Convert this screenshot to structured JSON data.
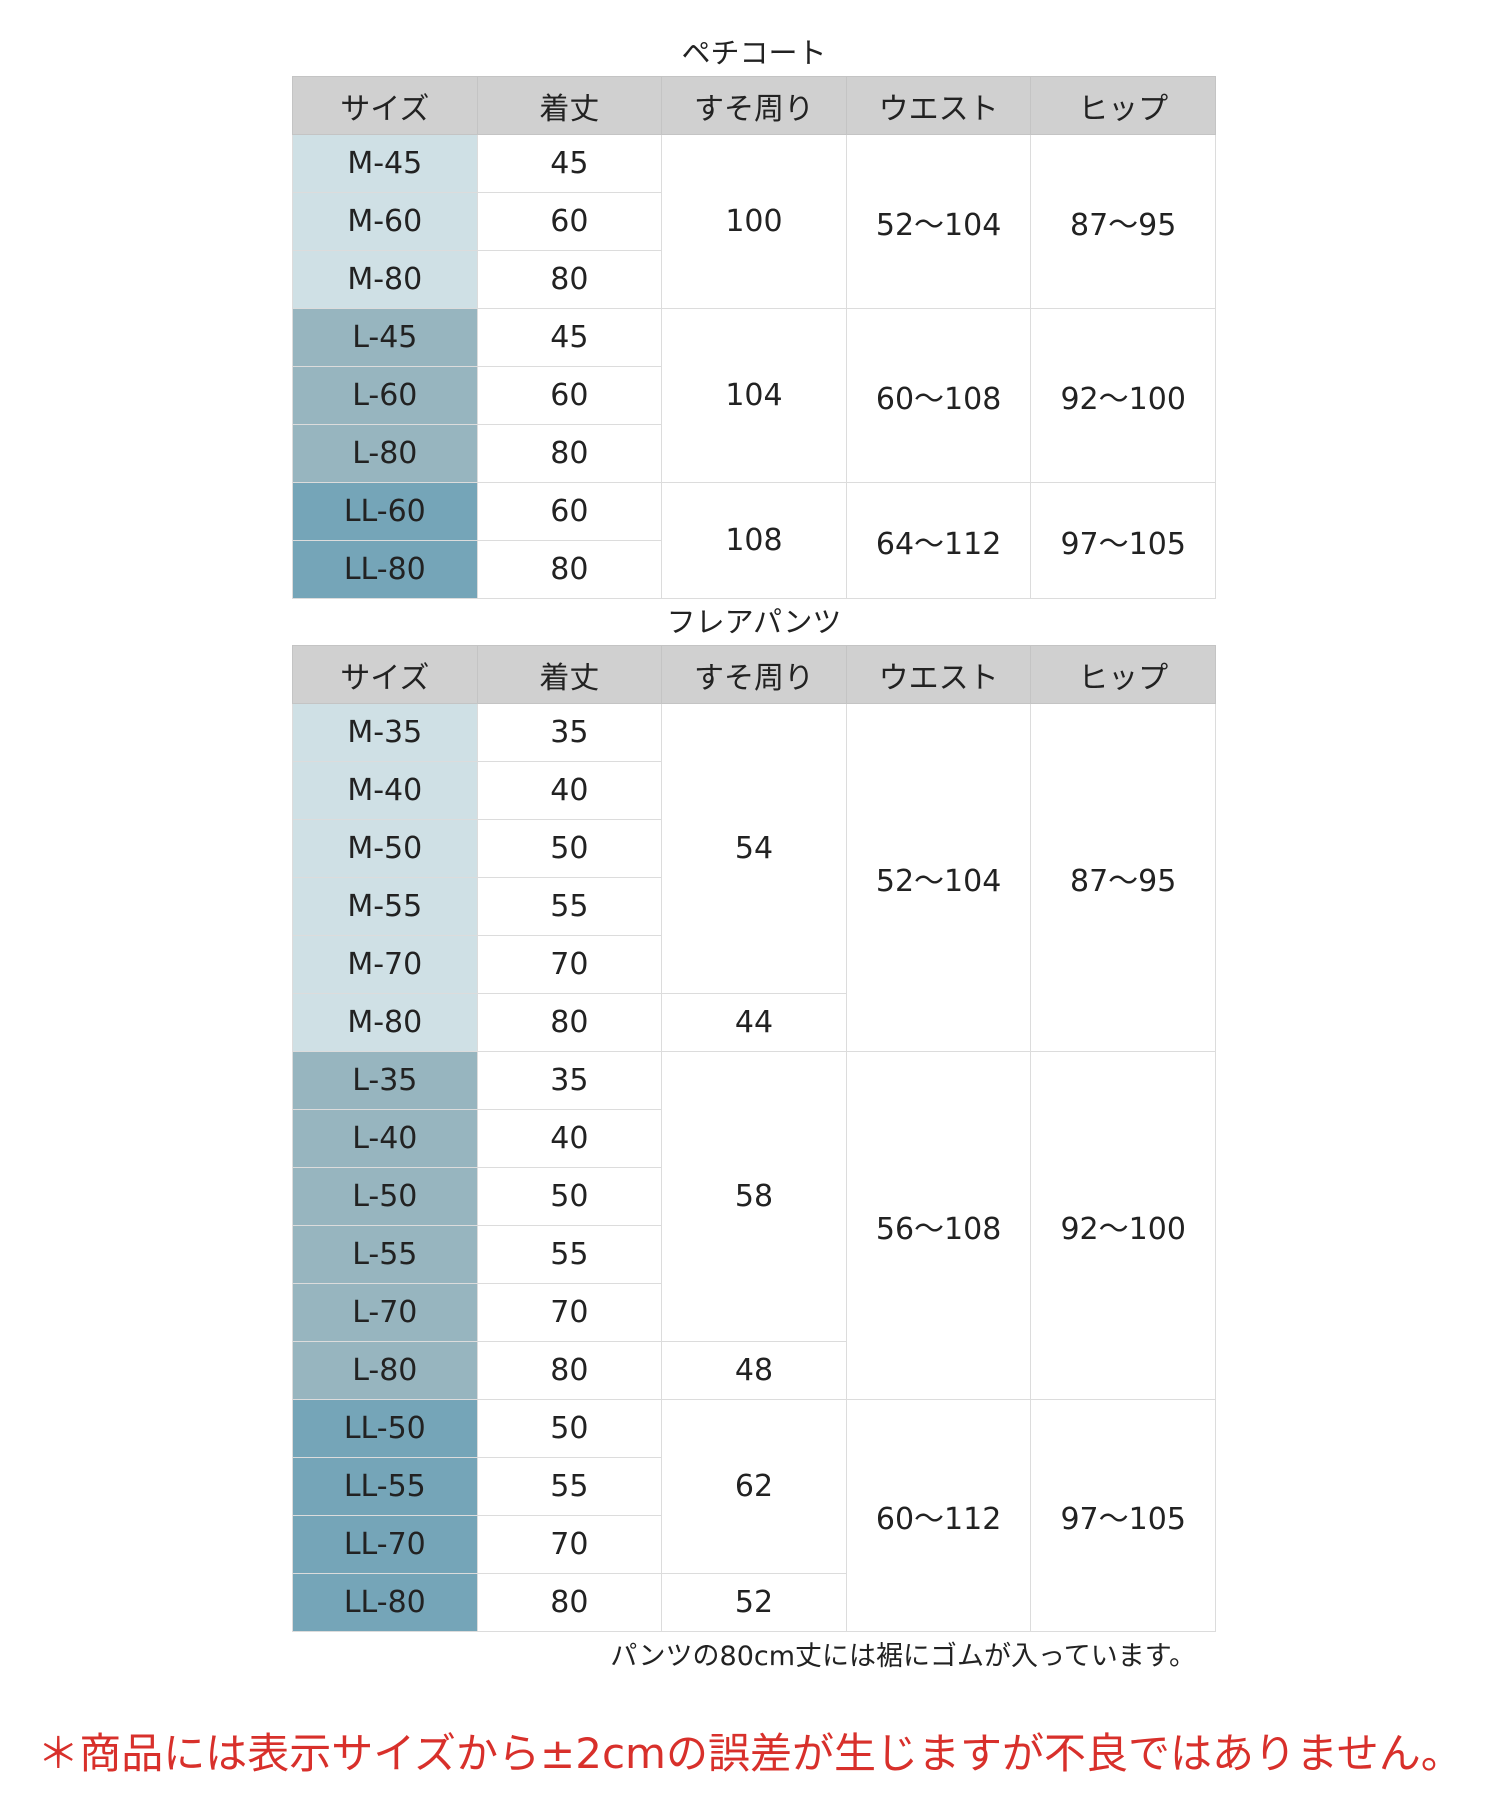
{
  "tables": [
    {
      "title": "ペチコート",
      "header": [
        "サイズ",
        "着丈",
        "すそ周り",
        "ウエスト",
        "ヒップ"
      ],
      "groups": [
        {
          "color": "#cfe0e5",
          "waist": "52〜104",
          "hip": "87〜95",
          "blocks": [
            {
              "hem": 100,
              "rows": [
                {
                  "size": "M-45",
                  "length": 45
                },
                {
                  "size": "M-60",
                  "length": 60
                },
                {
                  "size": "M-80",
                  "length": 80
                }
              ]
            }
          ]
        },
        {
          "color": "#97b5bf",
          "waist": "60〜108",
          "hip": "92〜100",
          "blocks": [
            {
              "hem": 104,
              "rows": [
                {
                  "size": "L-45",
                  "length": 45
                },
                {
                  "size": "L-60",
                  "length": 60
                },
                {
                  "size": "L-80",
                  "length": 80
                }
              ]
            }
          ]
        },
        {
          "color": "#75a5b8",
          "waist": "64〜112",
          "hip": "97〜105",
          "blocks": [
            {
              "hem": 108,
              "rows": [
                {
                  "size": "LL-60",
                  "length": 60
                },
                {
                  "size": "LL-80",
                  "length": 80
                }
              ]
            }
          ]
        }
      ]
    },
    {
      "title": "フレアパンツ",
      "header": [
        "サイズ",
        "着丈",
        "すそ周り",
        "ウエスト",
        "ヒップ"
      ],
      "groups": [
        {
          "color": "#cfe0e5",
          "waist": "52〜104",
          "hip": "87〜95",
          "blocks": [
            {
              "hem": 54,
              "rows": [
                {
                  "size": "M-35",
                  "length": 35
                },
                {
                  "size": "M-40",
                  "length": 40
                },
                {
                  "size": "M-50",
                  "length": 50
                },
                {
                  "size": "M-55",
                  "length": 55
                },
                {
                  "size": "M-70",
                  "length": 70
                }
              ]
            },
            {
              "hem": 44,
              "rows": [
                {
                  "size": "M-80",
                  "length": 80
                }
              ]
            }
          ]
        },
        {
          "color": "#97b5bf",
          "waist": "56〜108",
          "hip": "92〜100",
          "blocks": [
            {
              "hem": 58,
              "rows": [
                {
                  "size": "L-35",
                  "length": 35
                },
                {
                  "size": "L-40",
                  "length": 40
                },
                {
                  "size": "L-50",
                  "length": 50
                },
                {
                  "size": "L-55",
                  "length": 55
                },
                {
                  "size": "L-70",
                  "length": 70
                }
              ]
            },
            {
              "hem": 48,
              "rows": [
                {
                  "size": "L-80",
                  "length": 80
                }
              ]
            }
          ]
        },
        {
          "color": "#75a5b8",
          "waist": "60〜112",
          "hip": "97〜105",
          "blocks": [
            {
              "hem": 62,
              "rows": [
                {
                  "size": "LL-50",
                  "length": 50
                },
                {
                  "size": "LL-55",
                  "length": 55
                },
                {
                  "size": "LL-70",
                  "length": 70
                }
              ]
            },
            {
              "hem": 52,
              "rows": [
                {
                  "size": "LL-80",
                  "length": 80
                }
              ]
            }
          ]
        }
      ]
    }
  ],
  "note": "パンツの80cm丈には裾にゴムが入っています。",
  "disclaimer": "＊商品には表示サイズから±2cmの誤差が生じますが不良ではありません。"
}
